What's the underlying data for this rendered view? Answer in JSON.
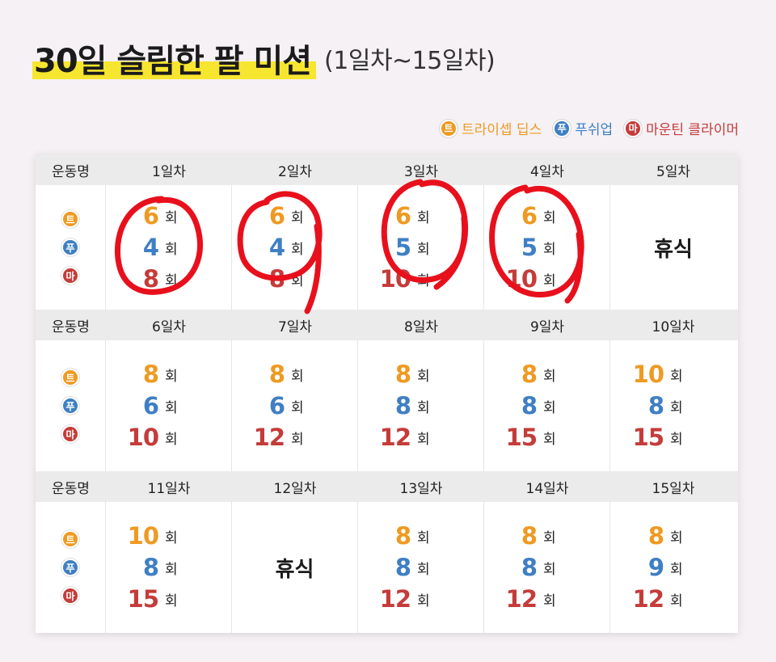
{
  "title": "30일 슬림한 팔 미션",
  "subtitle": "(1일차~15일차)",
  "legend": [
    {
      "badge": "트",
      "label": "트라이셉 딥스",
      "color": "#ee9a22"
    },
    {
      "badge": "푸",
      "label": "푸쉬업",
      "color": "#3f7fc3"
    },
    {
      "badge": "마",
      "label": "마운틴 클라이머",
      "color": "#c43c3a"
    }
  ],
  "exercise_header": "운동명",
  "unit": "회",
  "rest_label": "휴식",
  "badges": {
    "t": "트",
    "p": "푸",
    "m": "마"
  },
  "blocks": [
    {
      "days": [
        {
          "label": "1일차",
          "reps": [
            "6",
            "4",
            "8"
          ]
        },
        {
          "label": "2일차",
          "reps": [
            "6",
            "4",
            "8"
          ]
        },
        {
          "label": "3일차",
          "reps": [
            "6",
            "5",
            "10"
          ]
        },
        {
          "label": "4일차",
          "reps": [
            "6",
            "5",
            "10"
          ]
        },
        {
          "label": "5일차",
          "rest": true
        }
      ]
    },
    {
      "days": [
        {
          "label": "6일차",
          "reps": [
            "8",
            "6",
            "10"
          ]
        },
        {
          "label": "7일차",
          "reps": [
            "8",
            "6",
            "12"
          ]
        },
        {
          "label": "8일차",
          "reps": [
            "8",
            "8",
            "12"
          ]
        },
        {
          "label": "9일차",
          "reps": [
            "8",
            "8",
            "15"
          ]
        },
        {
          "label": "10일차",
          "reps": [
            "10",
            "8",
            "15"
          ]
        }
      ]
    },
    {
      "days": [
        {
          "label": "11일차",
          "reps": [
            "10",
            "8",
            "15"
          ]
        },
        {
          "label": "12일차",
          "rest": true
        },
        {
          "label": "13일차",
          "reps": [
            "8",
            "8",
            "12"
          ]
        },
        {
          "label": "14일차",
          "reps": [
            "8",
            "8",
            "12"
          ]
        },
        {
          "label": "15일차",
          "reps": [
            "8",
            "9",
            "12"
          ]
        }
      ]
    }
  ]
}
